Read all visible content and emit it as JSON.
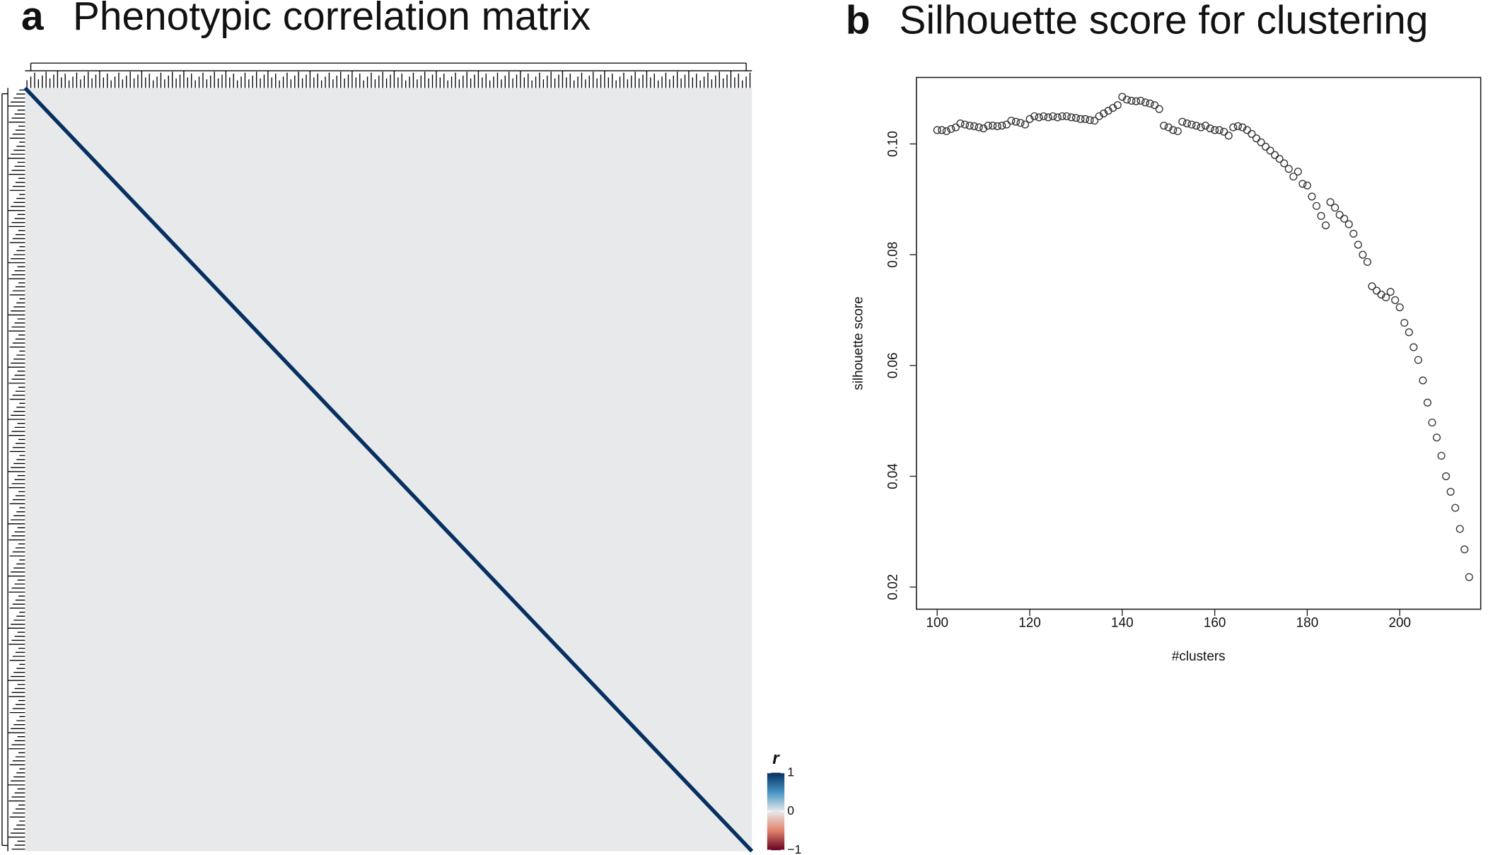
{
  "chart_data": [
    {
      "type": "heatmap",
      "panel": "a",
      "title": "Phenotypic correlation matrix",
      "colorbar_label": "r",
      "clim": [
        -1,
        1
      ],
      "cticks": [
        1,
        0,
        {
          "value": -1,
          "label": "−1"
        }
      ],
      "diagonal_value": 1,
      "off_diagonal_value": 0
    },
    {
      "type": "scatter",
      "panel": "b",
      "title": "Silhouette score for clustering",
      "xlabel": "#clusters",
      "ylabel": "silhouette score",
      "xlim": [
        95.5,
        217.5
      ],
      "ylim": [
        0.016,
        0.112
      ],
      "xticks": [
        100,
        120,
        140,
        160,
        180,
        200
      ],
      "yticks": [
        0.02,
        0.04,
        0.06,
        0.08,
        {
          "value": 0.1,
          "label": "0.10"
        }
      ],
      "marker_color": "#333333",
      "x": [
        100,
        101,
        102,
        103,
        104,
        105,
        106,
        107,
        108,
        109,
        110,
        111,
        112,
        113,
        114,
        115,
        116,
        117,
        118,
        119,
        120,
        121,
        122,
        123,
        124,
        125,
        126,
        127,
        128,
        129,
        130,
        131,
        132,
        133,
        134,
        135,
        136,
        137,
        138,
        139,
        140,
        141,
        142,
        143,
        144,
        145,
        146,
        147,
        148,
        149,
        150,
        151,
        152,
        153,
        154,
        155,
        156,
        157,
        158,
        159,
        160,
        161,
        162,
        163,
        164,
        165,
        166,
        167,
        168,
        169,
        170,
        171,
        172,
        173,
        174,
        175,
        176,
        177,
        178,
        179,
        180,
        181,
        182,
        183,
        184,
        185,
        186,
        187,
        188,
        189,
        190,
        191,
        192,
        193,
        194,
        195,
        196,
        197,
        198,
        199,
        200,
        201,
        202,
        203,
        204,
        205,
        206,
        207,
        208,
        209,
        210,
        211,
        212,
        213,
        214,
        215
      ],
      "values": [
        0.1025,
        0.1025,
        0.1023,
        0.1027,
        0.103,
        0.1037,
        0.1035,
        0.1033,
        0.1032,
        0.103,
        0.1028,
        0.1033,
        0.1033,
        0.1032,
        0.1033,
        0.1035,
        0.1042,
        0.104,
        0.1038,
        0.1035,
        0.1045,
        0.105,
        0.1048,
        0.105,
        0.1048,
        0.105,
        0.1048,
        0.105,
        0.105,
        0.1048,
        0.1047,
        0.1045,
        0.1045,
        0.1043,
        0.1042,
        0.105,
        0.1055,
        0.106,
        0.1065,
        0.107,
        0.1085,
        0.108,
        0.1078,
        0.1077,
        0.1078,
        0.1075,
        0.1073,
        0.107,
        0.1063,
        0.1033,
        0.103,
        0.1025,
        0.1023,
        0.104,
        0.1037,
        0.1035,
        0.1033,
        0.103,
        0.1033,
        0.1028,
        0.1025,
        0.1025,
        0.1022,
        0.1015,
        0.103,
        0.1032,
        0.103,
        0.1025,
        0.1018,
        0.101,
        0.1003,
        0.0995,
        0.0988,
        0.098,
        0.0973,
        0.0965,
        0.0955,
        0.0941,
        0.095,
        0.0928,
        0.0925,
        0.0905,
        0.0888,
        0.087,
        0.0853,
        0.0895,
        0.0885,
        0.0872,
        0.0865,
        0.0855,
        0.0838,
        0.0818,
        0.08,
        0.0787,
        0.0743,
        0.0735,
        0.0728,
        0.0723,
        0.0733,
        0.0718,
        0.0705,
        0.0677,
        0.066,
        0.0633,
        0.061,
        0.0573,
        0.0533,
        0.0497,
        0.047,
        0.0437,
        0.04,
        0.0372,
        0.0343,
        0.0305,
        0.0268,
        0.0218
      ]
    }
  ]
}
